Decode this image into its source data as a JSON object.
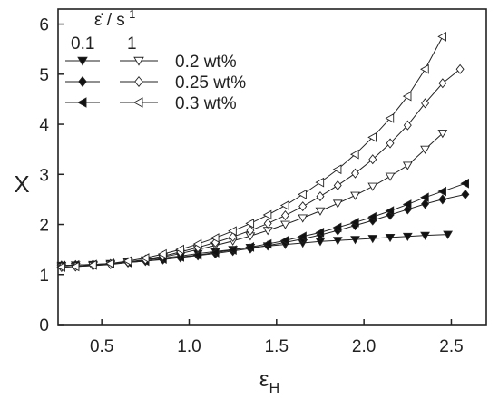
{
  "chart_data": {
    "type": "line",
    "xlabel": "ε",
    "xlabel_sub": "H",
    "ylabel": "X",
    "xlim": [
      0.25,
      2.7
    ],
    "ylim": [
      0,
      6.3
    ],
    "xticks": [
      "0.5",
      "1.0",
      "1.5",
      "2.0",
      "2.5"
    ],
    "xtick_values": [
      0.5,
      1.0,
      1.5,
      2.0,
      2.5
    ],
    "yticks": [
      "0",
      "1",
      "2",
      "3",
      "4",
      "5",
      "6"
    ],
    "ytick_values": [
      0,
      1,
      2,
      3,
      4,
      5,
      6
    ],
    "grid": false,
    "legend": {
      "placement": "top-left",
      "header": "ε̇ / s",
      "header_sup": "-1",
      "col1": "0.1",
      "col2": "1",
      "rows": [
        "0.2 wt%",
        "0.25 wt%",
        "0.3 wt%"
      ]
    },
    "series": [
      {
        "concentration": "0.2 wt%",
        "strain_rate": "0.1",
        "marker": "triangle-down",
        "filled": true,
        "x": [
          0.27,
          0.35,
          0.45,
          0.55,
          0.65,
          0.75,
          0.85,
          0.95,
          1.05,
          1.15,
          1.25,
          1.35,
          1.45,
          1.55,
          1.65,
          1.75,
          1.85,
          1.95,
          2.05,
          2.15,
          2.25,
          2.35,
          2.48
        ],
        "y": [
          1.18,
          1.19,
          1.2,
          1.22,
          1.25,
          1.29,
          1.33,
          1.37,
          1.42,
          1.46,
          1.5,
          1.54,
          1.57,
          1.6,
          1.63,
          1.66,
          1.68,
          1.7,
          1.72,
          1.74,
          1.76,
          1.78,
          1.8
        ]
      },
      {
        "concentration": "0.25 wt%",
        "strain_rate": "0.1",
        "marker": "diamond",
        "filled": true,
        "x": [
          0.27,
          0.35,
          0.45,
          0.55,
          0.65,
          0.75,
          0.85,
          0.95,
          1.05,
          1.15,
          1.25,
          1.35,
          1.45,
          1.55,
          1.65,
          1.75,
          1.85,
          1.95,
          2.05,
          2.15,
          2.25,
          2.35,
          2.45,
          2.58
        ],
        "y": [
          1.18,
          1.19,
          1.2,
          1.21,
          1.24,
          1.27,
          1.3,
          1.34,
          1.38,
          1.42,
          1.47,
          1.52,
          1.58,
          1.64,
          1.71,
          1.79,
          1.88,
          1.98,
          2.08,
          2.19,
          2.3,
          2.41,
          2.5,
          2.6
        ]
      },
      {
        "concentration": "0.3 wt%",
        "strain_rate": "0.1",
        "marker": "triangle-left",
        "filled": true,
        "x": [
          0.27,
          0.35,
          0.45,
          0.55,
          0.65,
          0.75,
          0.85,
          0.95,
          1.05,
          1.15,
          1.25,
          1.35,
          1.45,
          1.55,
          1.65,
          1.75,
          1.85,
          1.95,
          2.05,
          2.15,
          2.25,
          2.35,
          2.45,
          2.58
        ],
        "y": [
          1.18,
          1.19,
          1.2,
          1.22,
          1.24,
          1.27,
          1.31,
          1.35,
          1.39,
          1.44,
          1.49,
          1.55,
          1.61,
          1.68,
          1.76,
          1.84,
          1.94,
          2.04,
          2.15,
          2.27,
          2.4,
          2.54,
          2.66,
          2.82
        ]
      },
      {
        "concentration": "0.2 wt%",
        "strain_rate": "1",
        "marker": "triangle-down",
        "filled": false,
        "x": [
          0.27,
          0.35,
          0.45,
          0.55,
          0.65,
          0.75,
          0.85,
          0.95,
          1.05,
          1.15,
          1.25,
          1.35,
          1.45,
          1.55,
          1.65,
          1.75,
          1.85,
          1.95,
          2.05,
          2.15,
          2.25,
          2.35,
          2.45
        ],
        "y": [
          1.15,
          1.16,
          1.18,
          1.2,
          1.24,
          1.29,
          1.35,
          1.42,
          1.5,
          1.58,
          1.67,
          1.77,
          1.88,
          2.0,
          2.13,
          2.27,
          2.42,
          2.58,
          2.76,
          2.96,
          3.18,
          3.5,
          3.82
        ]
      },
      {
        "concentration": "0.25 wt%",
        "strain_rate": "1",
        "marker": "diamond",
        "filled": false,
        "x": [
          0.27,
          0.35,
          0.45,
          0.55,
          0.65,
          0.75,
          0.85,
          0.95,
          1.05,
          1.15,
          1.25,
          1.35,
          1.45,
          1.55,
          1.65,
          1.75,
          1.85,
          1.95,
          2.05,
          2.15,
          2.25,
          2.35,
          2.45,
          2.55
        ],
        "y": [
          1.15,
          1.16,
          1.18,
          1.21,
          1.25,
          1.3,
          1.37,
          1.45,
          1.54,
          1.64,
          1.75,
          1.88,
          2.02,
          2.18,
          2.36,
          2.56,
          2.78,
          3.02,
          3.3,
          3.62,
          3.98,
          4.42,
          4.82,
          5.1
        ]
      },
      {
        "concentration": "0.3 wt%",
        "strain_rate": "1",
        "marker": "triangle-left",
        "filled": false,
        "x": [
          0.27,
          0.35,
          0.45,
          0.55,
          0.65,
          0.75,
          0.85,
          0.95,
          1.05,
          1.15,
          1.25,
          1.35,
          1.45,
          1.55,
          1.65,
          1.75,
          1.85,
          1.95,
          2.05,
          2.15,
          2.25,
          2.35,
          2.45
        ],
        "y": [
          1.15,
          1.16,
          1.19,
          1.22,
          1.27,
          1.33,
          1.41,
          1.5,
          1.61,
          1.73,
          1.87,
          2.02,
          2.19,
          2.38,
          2.6,
          2.84,
          3.1,
          3.4,
          3.74,
          4.12,
          4.56,
          5.1,
          5.75
        ]
      }
    ]
  }
}
